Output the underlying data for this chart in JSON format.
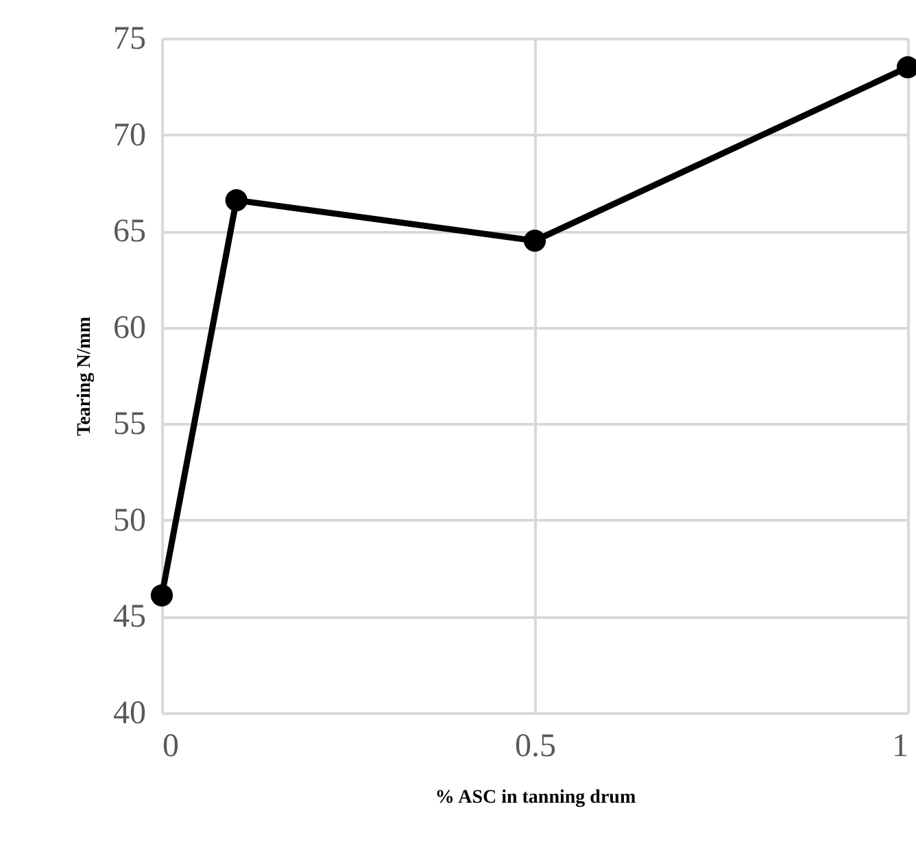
{
  "chart_data": {
    "type": "line",
    "xlabel": "% ASC in tanning drum",
    "ylabel": "Tearing N/mm",
    "x": [
      0,
      0.1,
      0.5,
      1
    ],
    "series": [
      {
        "color": "#000000",
        "values": [
          46.1,
          66.6,
          64.5,
          73.5
        ]
      }
    ],
    "xlim": [
      0,
      1
    ],
    "xticks": [
      0,
      0.5,
      1
    ],
    "ylim": [
      40,
      75
    ],
    "yticks": [
      40,
      45,
      50,
      55,
      60,
      65,
      70,
      75
    ],
    "grid": true,
    "marker": "circle",
    "line_style": "solid",
    "legend": false
  }
}
